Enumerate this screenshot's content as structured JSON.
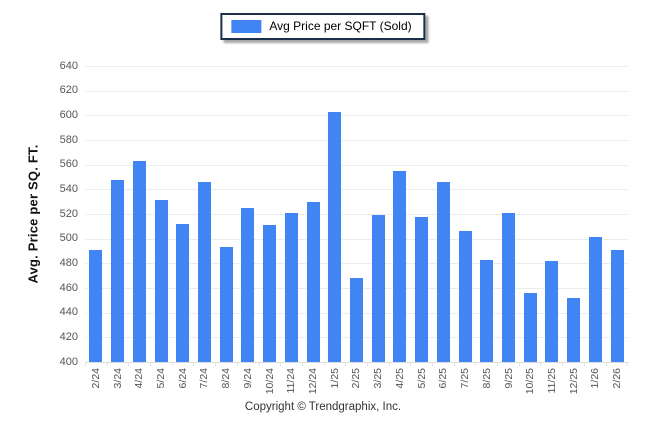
{
  "legend": {
    "label": "Avg Price per SQFT (Sold)"
  },
  "footer": {
    "copyright": "Copyright © Trendgraphix, Inc."
  },
  "colors": {
    "bar": "#4184f3",
    "grid": "#ececec",
    "tick_text": "#555555",
    "legend_border": "#1c2e4a"
  },
  "chart_data": {
    "type": "bar",
    "title": "",
    "xlabel": "",
    "ylabel": "Avg. Price per SQ. FT.",
    "ylim": [
      400,
      640
    ],
    "yticks": [
      400,
      420,
      440,
      460,
      480,
      500,
      520,
      540,
      560,
      580,
      600,
      620,
      640
    ],
    "grid": true,
    "legend_position": "top-center",
    "categories": [
      "2/24",
      "3/24",
      "4/24",
      "5/24",
      "6/24",
      "7/24",
      "8/24",
      "9/24",
      "10/24",
      "11/24",
      "12/24",
      "1/25",
      "2/25",
      "3/25",
      "4/25",
      "5/25",
      "6/25",
      "7/25",
      "8/25",
      "9/25",
      "10/25",
      "11/25",
      "12/25",
      "1/26",
      "2/26"
    ],
    "series": [
      {
        "name": "Avg Price per SQFT (Sold)",
        "values": [
          491,
          548,
          563,
          531,
          512,
          546,
          493,
          525,
          511,
          521,
          530,
          603,
          468,
          519,
          555,
          518,
          546,
          506,
          483,
          521,
          456,
          482,
          452,
          501,
          491
        ]
      }
    ]
  }
}
